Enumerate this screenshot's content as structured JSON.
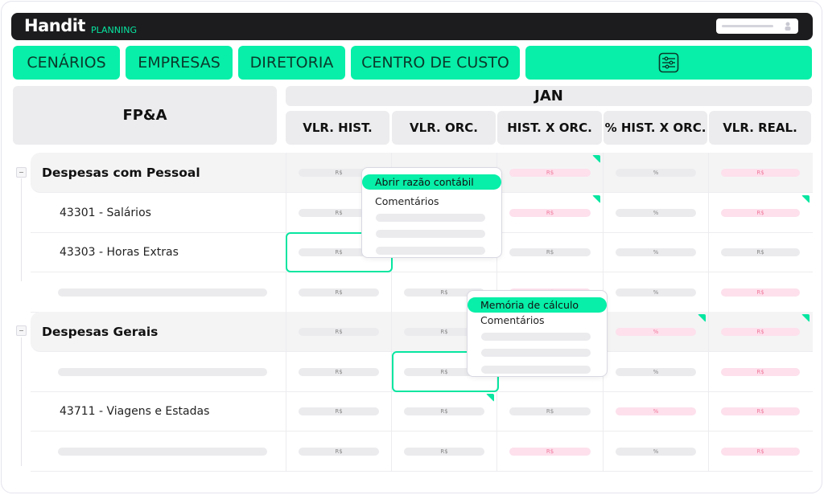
{
  "brand": {
    "name": "Handit",
    "product": "PLANNING",
    "accent": "#07efa8"
  },
  "nav": {
    "tabs": [
      {
        "label": "CENÁRIOS"
      },
      {
        "label": "EMPRESAS"
      },
      {
        "label": "DIRETORIA"
      },
      {
        "label": "CENTRO DE CUSTO"
      }
    ],
    "filter_icon": "sliders-icon"
  },
  "user_icon": "user-icon",
  "table": {
    "title": "FP&A",
    "month": "JAN",
    "columns": [
      "VLR. HIST.",
      "VLR. ORC.",
      "HIST. X ORC.",
      "% HIST. X ORC.",
      "VLR. REAL."
    ],
    "rows": [
      {
        "type": "group",
        "label": "Despesas com Pessoal",
        "cells": [
          [
            "R$",
            "gray",
            0
          ],
          [
            "R$",
            "gray",
            0
          ],
          [
            "R$",
            "pink",
            1
          ],
          [
            "%",
            "gray",
            0
          ],
          [
            "R$",
            "pink",
            0
          ]
        ]
      },
      {
        "type": "child",
        "label": "43301 - Salários",
        "cells": [
          [
            "R$",
            "gray",
            0
          ],
          [
            "R$",
            "gray",
            0
          ],
          [
            "R$",
            "pink",
            1
          ],
          [
            "%",
            "gray",
            0
          ],
          [
            "R$",
            "pink",
            1
          ]
        ]
      },
      {
        "type": "child",
        "label": "43303 - Horas Extras",
        "cells": [
          [
            "R$",
            "gray",
            0
          ],
          [
            "R$",
            "gray",
            0
          ],
          [
            "R$",
            "gray",
            0
          ],
          [
            "%",
            "gray",
            0
          ],
          [
            "R$",
            "gray",
            0
          ]
        ]
      },
      {
        "type": "placeholder",
        "label": "",
        "cells": [
          [
            "R$",
            "gray",
            0
          ],
          [
            "R$",
            "gray",
            0
          ],
          [
            "R$",
            "pink",
            0
          ],
          [
            "%",
            "gray",
            0
          ],
          [
            "R$",
            "pink",
            0
          ]
        ]
      },
      {
        "type": "group",
        "label": "Despesas Gerais",
        "cells": [
          [
            "R$",
            "gray",
            0
          ],
          [
            "R$",
            "gray",
            0
          ],
          [
            "R$",
            "gray",
            0
          ],
          [
            "%",
            "pink",
            1
          ],
          [
            "R$",
            "pink",
            1
          ]
        ]
      },
      {
        "type": "placeholder",
        "label": "",
        "cells": [
          [
            "R$",
            "gray",
            0
          ],
          [
            "R$",
            "gray",
            0
          ],
          [
            "R$",
            "gray",
            0
          ],
          [
            "%",
            "gray",
            0
          ],
          [
            "R$",
            "pink",
            0
          ]
        ]
      },
      {
        "type": "child",
        "label": "43711 - Viagens e Estadas",
        "cells": [
          [
            "R$",
            "gray",
            0
          ],
          [
            "R$",
            "gray",
            1
          ],
          [
            "R$",
            "gray",
            0
          ],
          [
            "%",
            "pink",
            0
          ],
          [
            "R$",
            "pink",
            0
          ]
        ]
      },
      {
        "type": "placeholder",
        "label": "",
        "cells": [
          [
            "R$",
            "gray",
            0
          ],
          [
            "R$",
            "gray",
            0
          ],
          [
            "R$",
            "pink",
            0
          ],
          [
            "%",
            "gray",
            0
          ],
          [
            "R$",
            "pink",
            0
          ]
        ]
      }
    ]
  },
  "context_menu_1": {
    "highlighted": "Abrir razão contábil",
    "item": "Comentários"
  },
  "context_menu_2": {
    "highlighted": "Memória de cálculo",
    "item": "Comentários"
  }
}
